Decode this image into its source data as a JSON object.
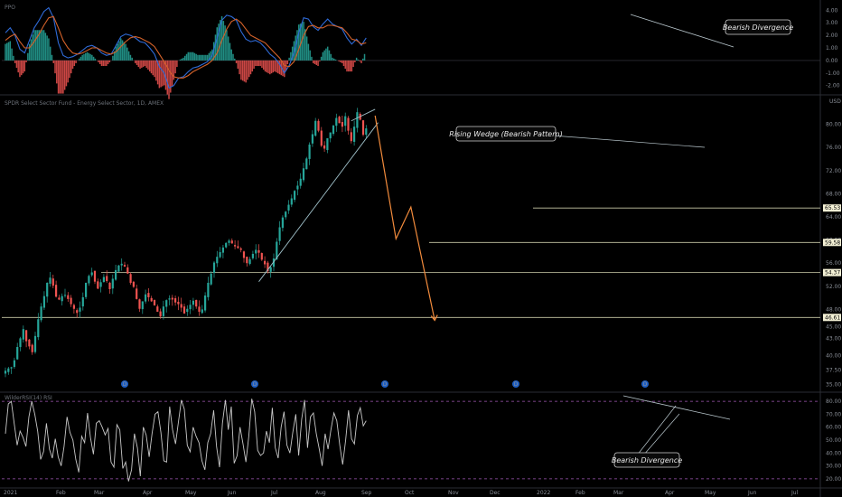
{
  "chart_data": [
    {
      "panel": "ppo",
      "type": "line",
      "title": "PPO",
      "y_ticks": [
        "4.00",
        "3.00",
        "2.00",
        "1.00",
        "0.00",
        "-1.00",
        "-2.00"
      ],
      "ylim": [
        -2.6,
        4.6
      ],
      "series": [
        {
          "role": "ppo_line",
          "color": "#2f6bd8",
          "values": [
            2.2,
            2.6,
            2.0,
            0.9,
            0.6,
            1.6,
            2.6,
            3.2,
            3.9,
            4.2,
            3.4,
            1.4,
            0.4,
            0.2,
            0.3,
            0.5,
            0.8,
            1.1,
            1.2,
            1.0,
            0.6,
            0.4,
            0.5,
            1.2,
            1.9,
            2.1,
            2.0,
            1.8,
            1.5,
            1.4,
            1.0,
            0.5,
            -0.5,
            -1.0,
            -2.2,
            -2.0,
            -1.4,
            -1.3,
            -0.9,
            -0.6,
            -0.5,
            -0.3,
            -0.1,
            0.4,
            1.8,
            3.2,
            3.6,
            3.5,
            3.2,
            2.3,
            1.7,
            1.5,
            1.6,
            1.4,
            1.0,
            0.5,
            0.2,
            -0.3,
            -1.0,
            -0.4,
            0.6,
            2.2,
            3.4,
            3.3,
            2.7,
            2.4,
            2.9,
            3.3,
            2.9,
            2.7,
            2.5,
            1.8,
            1.3,
            1.7,
            1.2,
            1.8
          ]
        },
        {
          "role": "signal_line",
          "color": "#d4622a",
          "values": [
            1.6,
            1.9,
            2.1,
            1.5,
            1.0,
            1.0,
            1.5,
            2.1,
            2.8,
            3.4,
            3.5,
            2.6,
            1.6,
            1.0,
            0.6,
            0.5,
            0.6,
            0.8,
            1.0,
            1.0,
            0.8,
            0.6,
            0.5,
            0.7,
            1.1,
            1.5,
            1.8,
            1.9,
            1.8,
            1.6,
            1.4,
            1.1,
            0.5,
            -0.1,
            -0.8,
            -1.3,
            -1.4,
            -1.4,
            -1.2,
            -0.9,
            -0.7,
            -0.5,
            -0.3,
            0.0,
            0.6,
            1.6,
            2.5,
            3.1,
            3.3,
            3.0,
            2.5,
            2.0,
            1.8,
            1.6,
            1.4,
            1.0,
            0.6,
            0.2,
            -0.4,
            -0.5,
            -0.1,
            0.9,
            2.0,
            2.7,
            2.8,
            2.6,
            2.6,
            2.8,
            2.8,
            2.7,
            2.6,
            2.2,
            1.7,
            1.6,
            1.3,
            1.4
          ]
        }
      ],
      "annotation": "Bearish Divergence"
    },
    {
      "panel": "price",
      "type": "candlestick",
      "title": "SPDR Select Sector Fund - Energy Select Sector, 1D, AMEX",
      "currency": "USD",
      "y_ticks": [
        "80.00",
        "76.00",
        "72.00",
        "68.00",
        "64.00",
        "60.00",
        "56.00",
        "52.00",
        "48.00",
        "45.00",
        "43.00",
        "40.00",
        "37.50",
        "35.00"
      ],
      "ylim": [
        34,
        84
      ],
      "x_ticks": [
        "2021",
        "Feb",
        "Mar",
        "Apr",
        "May",
        "Jun",
        "Jul",
        "Aug",
        "Sep",
        "Oct",
        "Nov",
        "Dec",
        "2022",
        "Feb",
        "Mar",
        "Apr",
        "May",
        "Jun",
        "Jul"
      ],
      "levels": [
        {
          "label": "65.53",
          "value": 65.53
        },
        {
          "label": "59.58",
          "value": 59.58
        },
        {
          "label": "54.37",
          "value": 54.37
        },
        {
          "label": "46.61",
          "value": 46.61
        }
      ],
      "closes": [
        37.4,
        37.8,
        38.0,
        39.2,
        41.5,
        43.0,
        44.6,
        42.5,
        41.6,
        40.6,
        43.4,
        46.3,
        48.5,
        50.3,
        52.6,
        53.5,
        52.1,
        50.2,
        49.7,
        50.3,
        50.5,
        49.8,
        48.9,
        48.1,
        47.4,
        48.3,
        50.1,
        52.6,
        53.8,
        54.4,
        52.8,
        51.6,
        52.7,
        53.6,
        52.9,
        51.5,
        53.3,
        54.8,
        55.6,
        55.9,
        55.4,
        54.2,
        52.6,
        51.9,
        49.8,
        48.1,
        49.4,
        50.6,
        50.1,
        49.4,
        48.7,
        47.6,
        46.8,
        48.5,
        49.6,
        49.9,
        49.7,
        49.2,
        48.9,
        48.3,
        47.3,
        48.1,
        48.8,
        49.5,
        48.5,
        47.6,
        48.0,
        50.4,
        52.6,
        54.2,
        56.1,
        57.1,
        57.9,
        58.7,
        59.5,
        59.9,
        59.4,
        58.9,
        58.6,
        58.3,
        56.9,
        56.0,
        56.7,
        57.6,
        58.3,
        57.8,
        56.6,
        55.8,
        54.6,
        55.3,
        56.8,
        59.7,
        62.2,
        63.9,
        64.9,
        66.1,
        67.2,
        68.5,
        69.4,
        70.6,
        72.4,
        74.1,
        76.5,
        78.3,
        80.6,
        78.9,
        76.3,
        75.8,
        77.6,
        78.6,
        79.8,
        81.1,
        80.2,
        79.6,
        81.4,
        78.9,
        77.1,
        79.6,
        82.1,
        80.8,
        78.2,
        79.3
      ],
      "rising_wedge_label": "Rising Wedge (Bearish Pattern)",
      "upper_trendline": [
        [
          116,
          80.6
        ],
        [
          124,
          82.6
        ]
      ],
      "lower_trendline": [
        [
          85,
          52.8
        ],
        [
          125,
          80.3
        ]
      ],
      "projection": [
        [
          124,
          81.5
        ],
        [
          131,
          60.2
        ],
        [
          136,
          65.7
        ],
        [
          144,
          46.1
        ]
      ],
      "event_markers": [
        "D",
        "D",
        "D",
        "D",
        "D"
      ]
    },
    {
      "panel": "rsi",
      "type": "line",
      "title": "WilderRSI(14) RSI",
      "y_ticks": [
        "80.00",
        "70.00",
        "60.00",
        "50.00",
        "40.00",
        "30.00",
        "20.00"
      ],
      "ylim": [
        15,
        85
      ],
      "bands": [
        80,
        20
      ],
      "values": [
        55,
        78,
        80,
        63,
        46,
        57,
        52,
        45,
        68,
        80,
        70,
        57,
        35,
        41,
        63,
        43,
        36,
        51,
        37,
        30,
        45,
        68,
        56,
        50,
        35,
        25,
        53,
        48,
        71,
        52,
        39,
        63,
        65,
        60,
        54,
        59,
        33,
        29,
        62,
        58,
        28,
        33,
        18,
        27,
        55,
        44,
        22,
        60,
        54,
        37,
        55,
        70,
        72,
        56,
        34,
        33,
        76,
        58,
        47,
        64,
        81,
        74,
        46,
        41,
        60,
        53,
        48,
        34,
        27,
        48,
        55,
        73,
        45,
        29,
        63,
        81,
        58,
        76,
        32,
        38,
        60,
        47,
        33,
        53,
        82,
        72,
        42,
        38,
        40,
        57,
        48,
        75,
        44,
        36,
        60,
        72,
        46,
        40,
        56,
        70,
        38,
        66,
        81,
        44,
        68,
        71,
        55,
        43,
        30,
        55,
        43,
        58,
        71,
        65,
        46,
        31,
        50,
        73,
        51,
        47,
        69,
        75,
        61,
        65
      ],
      "annotation": "Bearish Divergence"
    }
  ],
  "colors": {
    "background": "#000000",
    "up": "#26a69a",
    "down": "#ef5350",
    "ppo_line": "#2f6bd8",
    "signal_line": "#d4622a",
    "hist_up": "#26a69a",
    "hist_down": "#ef5350",
    "hline": "#c9c9a8",
    "trend": "#9fc0c9",
    "projection": "#f28b3c",
    "rsi": "#c8c8c8",
    "rsi_band": "#a259b5"
  }
}
